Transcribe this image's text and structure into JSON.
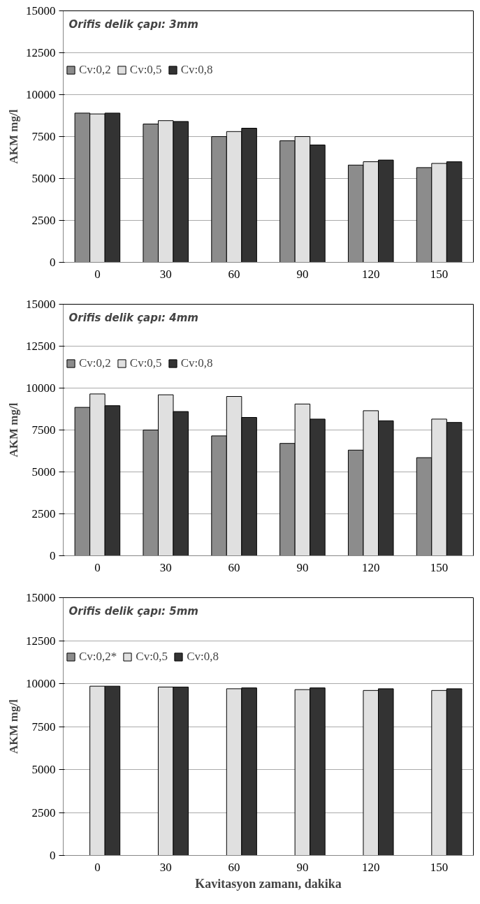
{
  "chart_data": [
    {
      "type": "bar",
      "title": "Orifis delik çapı: 3mm",
      "ylabel": "AKM mg/l",
      "categories": [
        "0",
        "30",
        "60",
        "90",
        "120",
        "150"
      ],
      "ylim": [
        0,
        15000
      ],
      "yticks": [
        0,
        2500,
        5000,
        7500,
        10000,
        12500,
        15000
      ],
      "grid": "y",
      "legend": "top left",
      "series": [
        {
          "name": "Cv:0,2",
          "color": "#8c8c8c",
          "values": [
            8900,
            8250,
            7500,
            7250,
            5800,
            5650
          ]
        },
        {
          "name": "Cv:0,5",
          "color": "#e0e0e0",
          "values": [
            8850,
            8450,
            7800,
            7500,
            6000,
            5900
          ]
        },
        {
          "name": "Cv:0,8",
          "color": "#333333",
          "values": [
            8900,
            8400,
            8000,
            7000,
            6100,
            6000
          ]
        }
      ]
    },
    {
      "type": "bar",
      "title": "Orifis delik çapı: 4mm",
      "ylabel": "AKM mg/l",
      "categories": [
        "0",
        "30",
        "60",
        "90",
        "120",
        "150"
      ],
      "ylim": [
        0,
        15000
      ],
      "yticks": [
        0,
        2500,
        5000,
        7500,
        10000,
        12500,
        15000
      ],
      "grid": "y",
      "legend": "top left",
      "series": [
        {
          "name": "Cv:0,2",
          "color": "#8c8c8c",
          "values": [
            8850,
            7500,
            7150,
            6700,
            6300,
            5850
          ]
        },
        {
          "name": "Cv:0,5",
          "color": "#e0e0e0",
          "values": [
            9650,
            9600,
            9500,
            9050,
            8650,
            8150
          ]
        },
        {
          "name": "Cv:0,8",
          "color": "#333333",
          "values": [
            8950,
            8600,
            8250,
            8150,
            8050,
            7950
          ]
        }
      ]
    },
    {
      "type": "bar",
      "title": "Orifis delik çapı: 5mm",
      "ylabel": "AKM mg/l",
      "xlabel": "Kavitasyon zamanı, dakika",
      "categories": [
        "0",
        "30",
        "60",
        "90",
        "120",
        "150"
      ],
      "ylim": [
        0,
        15000
      ],
      "yticks": [
        0,
        2500,
        5000,
        7500,
        10000,
        12500,
        15000
      ],
      "grid": "y",
      "legend": "top left",
      "series": [
        {
          "name": "Cv:0,2*",
          "color": "#8c8c8c",
          "values": [
            null,
            null,
            null,
            null,
            null,
            null
          ]
        },
        {
          "name": "Cv:0,5",
          "color": "#e0e0e0",
          "values": [
            9850,
            9800,
            9700,
            9650,
            9600,
            9600
          ]
        },
        {
          "name": "Cv:0,8",
          "color": "#333333",
          "values": [
            9850,
            9800,
            9750,
            9750,
            9700,
            9700
          ]
        }
      ]
    }
  ]
}
